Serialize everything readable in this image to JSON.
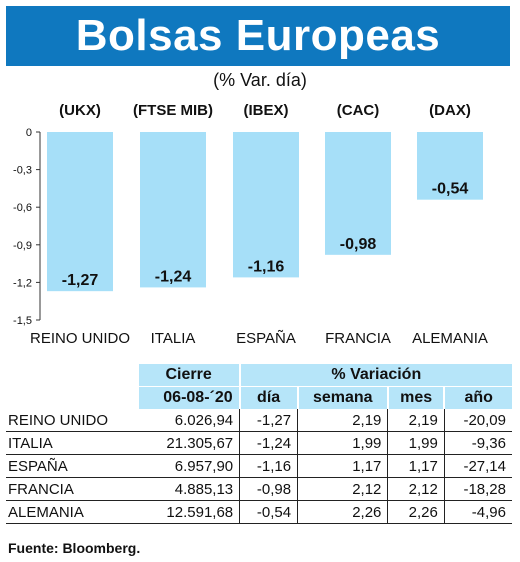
{
  "title": "Bolsas Europeas",
  "subtitle": "(% Var. día)",
  "chart_data": {
    "type": "bar",
    "categories": [
      "REINO UNIDO",
      "ITALIA",
      "ESPAÑA",
      "FRANCIA",
      "ALEMANIA"
    ],
    "index_labels": [
      "(UKX)",
      "(FTSE MIB)",
      "(IBEX)",
      "(CAC)",
      "(DAX)"
    ],
    "values": [
      -1.27,
      -1.24,
      -1.16,
      -0.98,
      -0.54
    ],
    "value_labels": [
      "-1,27",
      "-1,24",
      "-1,16",
      "-0,98",
      "-0,54"
    ],
    "yticks": [
      0,
      -0.3,
      -0.6,
      -0.9,
      -1.2,
      -1.5
    ],
    "ytick_labels": [
      "0",
      "-0,3",
      "-0,6",
      "-0,9",
      "-1,2",
      "-1,5"
    ],
    "ylim": [
      -1.5,
      0
    ],
    "bar_color": "#a6dff8",
    "grid": false
  },
  "table": {
    "header_top": [
      "Cierre",
      "% Variación"
    ],
    "header_sub": [
      "06-08-´20",
      "día",
      "semana",
      "mes",
      "año"
    ],
    "header_color": "#b6e5f9",
    "rows": [
      {
        "name": "REINO UNIDO",
        "cierre": "6.026,94",
        "dia": "-1,27",
        "semana": "2,19",
        "mes": "2,19",
        "anio": "-20,09"
      },
      {
        "name": "ITALIA",
        "cierre": "21.305,67",
        "dia": "-1,24",
        "semana": "1,99",
        "mes": "1,99",
        "anio": "-9,36"
      },
      {
        "name": "ESPAÑA",
        "cierre": "6.957,90",
        "dia": "-1,16",
        "semana": "1,17",
        "mes": "1,17",
        "anio": "-27,14"
      },
      {
        "name": "FRANCIA",
        "cierre": "4.885,13",
        "dia": "-0,98",
        "semana": "2,12",
        "mes": "2,12",
        "anio": "-18,28"
      },
      {
        "name": "ALEMANIA",
        "cierre": "12.591,68",
        "dia": "-0,54",
        "semana": "2,26",
        "mes": "2,26",
        "anio": "-4,96"
      }
    ]
  },
  "source": "Fuente: Bloomberg.",
  "colors": {
    "title_bar": "#0f78bf"
  }
}
